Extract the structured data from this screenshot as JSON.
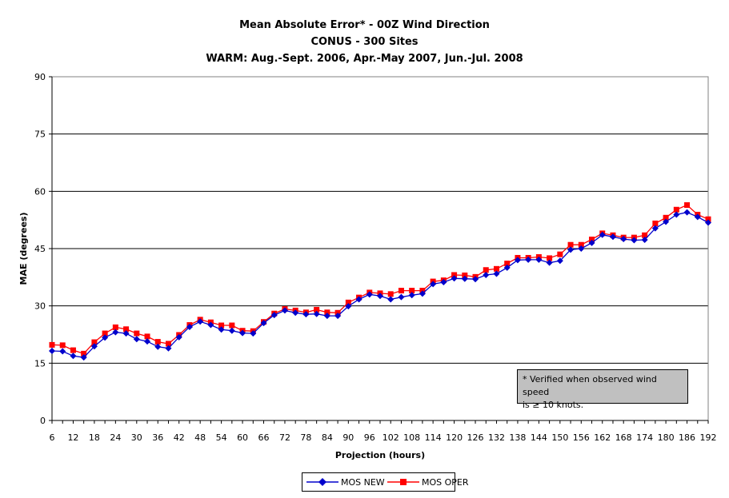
{
  "title": {
    "line1": "Mean Absolute Error* - 00Z Wind Direction",
    "line2": "CONUS - 300 Sites",
    "line3": "WARM: Aug.-Sept. 2006, Apr.-May 2007, Jun.-Jul. 2008"
  },
  "note": {
    "line1": "* Verified when observed wind speed",
    "line2": "is ≥ 10 knots."
  },
  "colors": {
    "mos_new": "#0000cc",
    "mos_oper": "#ff0000"
  },
  "chart_data": {
    "type": "line",
    "xlabel": "Projection (hours)",
    "ylabel": "MAE (degrees)",
    "ylim": [
      0,
      90
    ],
    "yticks": [
      0,
      15,
      30,
      45,
      60,
      75,
      90
    ],
    "xticks": [
      6,
      12,
      18,
      24,
      30,
      36,
      42,
      48,
      54,
      60,
      66,
      72,
      78,
      84,
      90,
      96,
      102,
      108,
      114,
      120,
      126,
      132,
      138,
      144,
      150,
      156,
      162,
      168,
      174,
      180,
      186,
      192
    ],
    "grid": "horizontal",
    "legend_position": "bottom",
    "x": [
      6,
      9,
      12,
      15,
      18,
      21,
      24,
      27,
      30,
      33,
      36,
      39,
      42,
      45,
      48,
      51,
      54,
      57,
      60,
      63,
      66,
      69,
      72,
      75,
      78,
      81,
      84,
      87,
      90,
      93,
      96,
      99,
      102,
      105,
      108,
      111,
      114,
      117,
      120,
      123,
      126,
      129,
      132,
      135,
      138,
      141,
      144,
      147,
      150,
      153,
      156,
      159,
      162,
      165,
      168,
      171,
      174,
      177,
      180,
      183,
      186,
      189,
      192
    ],
    "series": [
      {
        "name": "MOS NEW",
        "marker": "diamond",
        "values": [
          18.2,
          18.1,
          16.9,
          16.5,
          19.4,
          21.7,
          23.1,
          22.8,
          21.3,
          20.7,
          19.3,
          18.9,
          21.8,
          24.5,
          25.9,
          25.0,
          23.8,
          23.5,
          22.9,
          22.8,
          25.5,
          27.6,
          28.8,
          28.2,
          27.8,
          27.9,
          27.4,
          27.4,
          29.9,
          31.7,
          33.0,
          32.6,
          31.7,
          32.3,
          32.8,
          33.2,
          35.7,
          36.2,
          37.2,
          37.1,
          37.0,
          38.1,
          38.4,
          40.0,
          42.0,
          42.1,
          42.1,
          41.3,
          41.8,
          44.7,
          45.0,
          46.5,
          48.6,
          48.1,
          47.5,
          47.2,
          47.3,
          50.3,
          52.0,
          53.9,
          54.5,
          53.3,
          51.8
        ]
      },
      {
        "name": "MOS OPER",
        "marker": "square",
        "values": [
          19.8,
          19.7,
          18.4,
          17.5,
          20.5,
          22.8,
          24.4,
          23.9,
          22.8,
          22.0,
          20.6,
          20.1,
          22.4,
          25.0,
          26.4,
          25.7,
          24.9,
          24.9,
          23.5,
          23.4,
          25.8,
          28.0,
          29.2,
          28.8,
          28.3,
          29.0,
          28.3,
          28.2,
          30.9,
          32.2,
          33.5,
          33.3,
          33.1,
          34.0,
          34.0,
          34.0,
          36.4,
          36.7,
          38.1,
          38.0,
          37.6,
          39.4,
          39.7,
          41.1,
          42.6,
          42.6,
          42.8,
          42.5,
          43.5,
          46.0,
          46.0,
          47.4,
          49.0,
          48.5,
          47.9,
          47.9,
          48.5,
          51.6,
          53.1,
          55.2,
          56.4,
          53.9,
          52.7
        ]
      }
    ]
  }
}
